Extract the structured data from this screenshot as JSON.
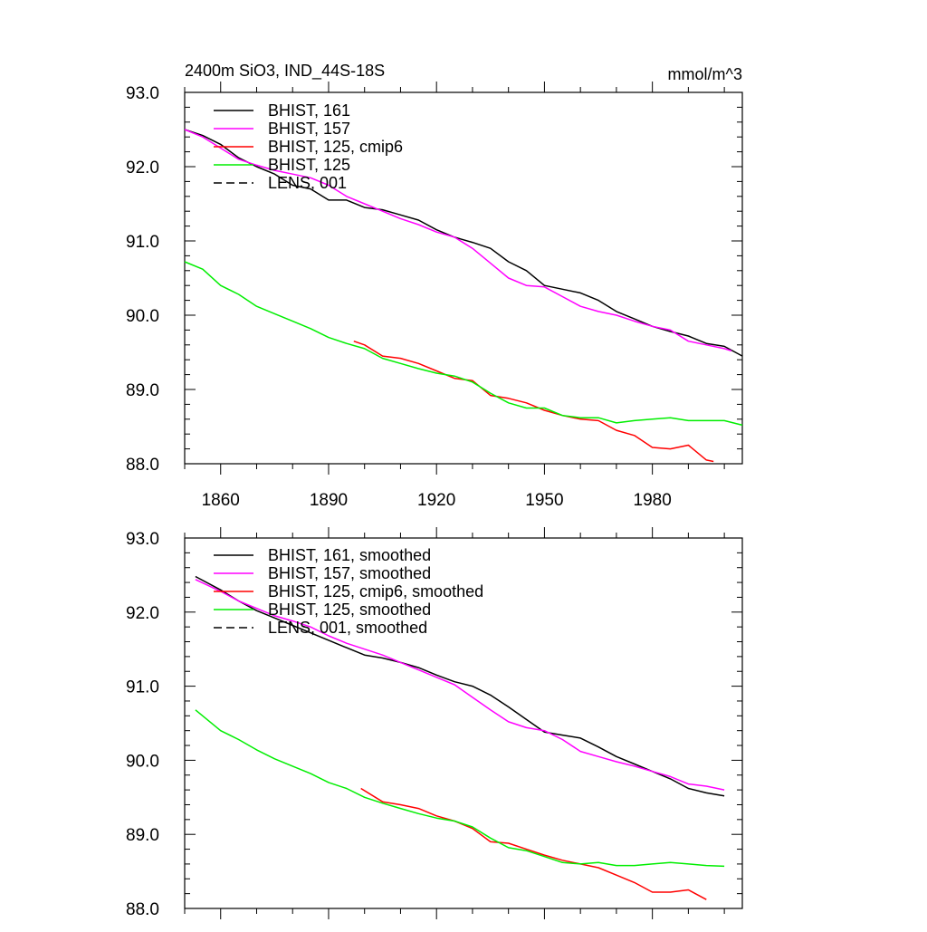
{
  "chart_data": [
    {
      "type": "line",
      "title": "2400m SiO3, IND_44S-18S",
      "units": "mmol/m^3",
      "xlim": [
        1850,
        2005
      ],
      "ylim": [
        88.0,
        93.0
      ],
      "x_ticks": [
        1860,
        1890,
        1920,
        1950,
        1980
      ],
      "x_tick_labels": [
        "1860",
        "1890",
        "1920",
        "1950",
        "1980"
      ],
      "y_ticks": [
        88,
        89,
        90,
        91,
        92,
        93
      ],
      "y_tick_labels": [
        "88.0",
        "89.0",
        "90.0",
        "91.0",
        "92.0",
        "93.0"
      ],
      "legend_position": "top-left",
      "series": [
        {
          "name": "BHIST, 161",
          "color": "#000000",
          "dash": "solid",
          "x": [
            1850,
            1855,
            1860,
            1865,
            1870,
            1875,
            1880,
            1885,
            1890,
            1895,
            1900,
            1905,
            1910,
            1915,
            1920,
            1925,
            1930,
            1935,
            1940,
            1945,
            1950,
            1955,
            1960,
            1965,
            1970,
            1975,
            1980,
            1985,
            1990,
            1995,
            2000,
            2005
          ],
          "values": [
            92.5,
            92.42,
            92.3,
            92.12,
            92.0,
            91.9,
            91.75,
            91.7,
            91.55,
            91.55,
            91.45,
            91.42,
            91.35,
            91.28,
            91.15,
            91.05,
            90.98,
            90.9,
            90.72,
            90.6,
            90.4,
            90.35,
            90.3,
            90.2,
            90.05,
            89.95,
            89.85,
            89.78,
            89.72,
            89.62,
            89.58,
            89.45
          ]
        },
        {
          "name": "BHIST, 157",
          "color": "#ff00ff",
          "dash": "solid",
          "x": [
            1850,
            1855,
            1860,
            1865,
            1870,
            1875,
            1880,
            1885,
            1890,
            1895,
            1900,
            1905,
            1910,
            1915,
            1920,
            1925,
            1930,
            1935,
            1940,
            1945,
            1950,
            1955,
            1960,
            1965,
            1970,
            1975,
            1980,
            1985,
            1990,
            1995,
            2000,
            2002
          ],
          "values": [
            92.5,
            92.4,
            92.25,
            92.1,
            92.02,
            91.95,
            91.9,
            91.85,
            91.75,
            91.6,
            91.5,
            91.4,
            91.3,
            91.22,
            91.12,
            91.05,
            90.9,
            90.7,
            90.5,
            90.4,
            90.38,
            90.25,
            90.12,
            90.05,
            90.0,
            89.92,
            89.85,
            89.8,
            89.65,
            89.6,
            89.55,
            89.52
          ]
        },
        {
          "name": "BHIST, 125, cmip6",
          "color": "#ff0000",
          "dash": "solid",
          "x": [
            1897,
            1900,
            1905,
            1910,
            1915,
            1920,
            1925,
            1930,
            1935,
            1940,
            1945,
            1950,
            1955,
            1960,
            1965,
            1970,
            1975,
            1980,
            1985,
            1990,
            1995,
            1997
          ],
          "values": [
            89.65,
            89.6,
            89.45,
            89.42,
            89.35,
            89.25,
            89.15,
            89.12,
            88.92,
            88.88,
            88.82,
            88.72,
            88.65,
            88.6,
            88.58,
            88.45,
            88.38,
            88.22,
            88.2,
            88.25,
            88.05,
            88.03
          ]
        },
        {
          "name": "BHIST, 125",
          "color": "#00ee00",
          "dash": "solid",
          "x": [
            1850,
            1855,
            1860,
            1865,
            1870,
            1875,
            1880,
            1885,
            1890,
            1895,
            1900,
            1905,
            1910,
            1915,
            1920,
            1925,
            1930,
            1935,
            1940,
            1945,
            1950,
            1955,
            1960,
            1965,
            1970,
            1975,
            1980,
            1985,
            1990,
            1995,
            2000,
            2005
          ],
          "values": [
            90.72,
            90.62,
            90.4,
            90.28,
            90.12,
            90.02,
            89.92,
            89.82,
            89.7,
            89.62,
            89.55,
            89.42,
            89.35,
            89.28,
            89.22,
            89.18,
            89.1,
            88.95,
            88.82,
            88.75,
            88.75,
            88.65,
            88.62,
            88.62,
            88.55,
            88.58,
            88.6,
            88.62,
            88.58,
            88.58,
            88.58,
            88.52
          ]
        },
        {
          "name": "LENS, 001",
          "color": "#000000",
          "dash": "dashed",
          "x": [],
          "values": []
        }
      ]
    },
    {
      "type": "line",
      "title": "",
      "units": "",
      "xlim": [
        1850,
        2005
      ],
      "ylim": [
        88.0,
        93.0
      ],
      "x_ticks": [
        1860,
        1890,
        1920,
        1950,
        1980
      ],
      "x_tick_labels": [],
      "y_ticks": [
        88,
        89,
        90,
        91,
        92,
        93
      ],
      "y_tick_labels": [
        "88.0",
        "89.0",
        "90.0",
        "91.0",
        "92.0",
        "93.0"
      ],
      "legend_position": "top-left",
      "series": [
        {
          "name": "BHIST, 161, smoothed",
          "color": "#000000",
          "dash": "solid",
          "x": [
            1853,
            1860,
            1865,
            1870,
            1875,
            1880,
            1885,
            1890,
            1895,
            1900,
            1905,
            1910,
            1915,
            1920,
            1925,
            1930,
            1935,
            1940,
            1945,
            1950,
            1955,
            1960,
            1965,
            1970,
            1975,
            1980,
            1985,
            1990,
            1995,
            2000
          ],
          "values": [
            92.48,
            92.3,
            92.15,
            92.02,
            91.92,
            91.82,
            91.72,
            91.62,
            91.52,
            91.42,
            91.38,
            91.32,
            91.25,
            91.15,
            91.06,
            91.0,
            90.88,
            90.72,
            90.55,
            90.38,
            90.34,
            90.3,
            90.18,
            90.05,
            89.95,
            89.85,
            89.75,
            89.62,
            89.56,
            89.52
          ]
        },
        {
          "name": "BHIST, 157, smoothed",
          "color": "#ff00ff",
          "dash": "solid",
          "x": [
            1853,
            1860,
            1865,
            1870,
            1875,
            1880,
            1885,
            1890,
            1895,
            1900,
            1905,
            1910,
            1915,
            1920,
            1925,
            1930,
            1935,
            1940,
            1945,
            1950,
            1955,
            1960,
            1965,
            1970,
            1975,
            1980,
            1985,
            1990,
            1995,
            2000
          ],
          "values": [
            92.44,
            92.28,
            92.15,
            92.05,
            91.95,
            91.88,
            91.8,
            91.68,
            91.58,
            91.5,
            91.42,
            91.32,
            91.22,
            91.12,
            91.02,
            90.85,
            90.68,
            90.52,
            90.44,
            90.4,
            90.28,
            90.12,
            90.05,
            89.98,
            89.92,
            89.85,
            89.78,
            89.68,
            89.65,
            89.6
          ]
        },
        {
          "name": "BHIST, 125, cmip6, smoothed",
          "color": "#ff0000",
          "dash": "solid",
          "x": [
            1899,
            1905,
            1910,
            1915,
            1920,
            1925,
            1930,
            1935,
            1940,
            1945,
            1950,
            1955,
            1960,
            1965,
            1970,
            1975,
            1980,
            1985,
            1990,
            1995
          ],
          "values": [
            89.62,
            89.44,
            89.4,
            89.35,
            89.25,
            89.18,
            89.08,
            88.9,
            88.88,
            88.8,
            88.72,
            88.65,
            88.6,
            88.55,
            88.45,
            88.35,
            88.22,
            88.22,
            88.25,
            88.12
          ]
        },
        {
          "name": "BHIST, 125, smoothed",
          "color": "#00ee00",
          "dash": "solid",
          "x": [
            1853,
            1860,
            1865,
            1870,
            1875,
            1880,
            1885,
            1890,
            1895,
            1900,
            1905,
            1910,
            1915,
            1920,
            1925,
            1930,
            1935,
            1940,
            1945,
            1950,
            1955,
            1960,
            1965,
            1970,
            1975,
            1980,
            1985,
            1990,
            1995,
            2000
          ],
          "values": [
            90.68,
            90.4,
            90.28,
            90.14,
            90.02,
            89.92,
            89.82,
            89.7,
            89.62,
            89.5,
            89.42,
            89.35,
            89.28,
            89.22,
            89.18,
            89.1,
            88.95,
            88.82,
            88.78,
            88.7,
            88.62,
            88.6,
            88.62,
            88.58,
            88.58,
            88.6,
            88.62,
            88.6,
            88.58,
            88.57
          ]
        },
        {
          "name": "LENS, 001, smoothed",
          "color": "#000000",
          "dash": "dashed",
          "x": [],
          "values": []
        }
      ]
    }
  ]
}
